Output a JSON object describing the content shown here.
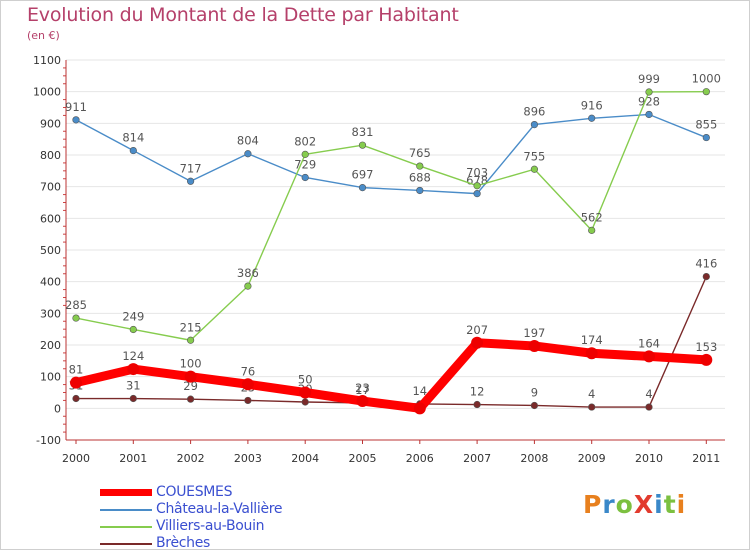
{
  "header": {
    "title": "Evolution du Montant de la Dette par Habitant",
    "subtitle": "(en €)"
  },
  "logo": {
    "text": "ProXiti",
    "colors": [
      "#e8801e",
      "#3a88c9",
      "#7cc040",
      "#e23b2e",
      "#3a88c9",
      "#7cc040",
      "#e8801e"
    ]
  },
  "chart_data": {
    "type": "line",
    "title": "Evolution du Montant de la Dette par Habitant",
    "subtitle": "(en €)",
    "xlabel": "",
    "ylabel": "",
    "x": [
      "2000",
      "2001",
      "2002",
      "2003",
      "2004",
      "2005",
      "2006",
      "2007",
      "2008",
      "2009",
      "2010",
      "2011"
    ],
    "ylim": [
      -100,
      1100
    ],
    "yticks": [
      "-100",
      "0",
      "100",
      "200",
      "300",
      "400",
      "500",
      "600",
      "700",
      "800",
      "900",
      "1000",
      "1100"
    ],
    "grid": "horizontal",
    "legend_position": "bottom-left",
    "series": [
      {
        "name": "Château-la-Vallière",
        "color": "#4a8cc8",
        "values": [
          911,
          814,
          717,
          804,
          729,
          697,
          688,
          678,
          896,
          916,
          928,
          855
        ],
        "labels": [
          "911",
          "814",
          "717",
          "804",
          "729",
          "697",
          "688",
          "678",
          "896",
          "916",
          "928",
          "855"
        ]
      },
      {
        "name": "Villiers-au-Bouin",
        "color": "#86cc4e",
        "values": [
          285,
          249,
          215,
          386,
          802,
          831,
          765,
          703,
          755,
          562,
          999,
          1000
        ],
        "labels": [
          "285",
          "249",
          "215",
          "386",
          "802",
          "831",
          "765",
          "703",
          "755",
          "562",
          "999",
          "1000"
        ]
      },
      {
        "name": "Brèches",
        "color": "#7a2a2a",
        "values": [
          31,
          31,
          29,
          25,
          20,
          17,
          14,
          12,
          9,
          4,
          4,
          416
        ],
        "labels": [
          "31",
          "31",
          "29",
          "25",
          "20",
          "17",
          "14",
          "12",
          "9",
          "4",
          "4",
          "416"
        ]
      },
      {
        "name": "COUESMES",
        "color": "#ff0000",
        "values": [
          81,
          124,
          100,
          76,
          50,
          23,
          0,
          207,
          197,
          174,
          164,
          153
        ],
        "labels": [
          "81",
          "124",
          "100",
          "76",
          "50",
          "23",
          "",
          "207",
          "197",
          "174",
          "164",
          "153"
        ]
      }
    ],
    "legend_order": [
      "COUESMES",
      "Château-la-Vallière",
      "Villiers-au-Bouin",
      "Brèches"
    ]
  }
}
